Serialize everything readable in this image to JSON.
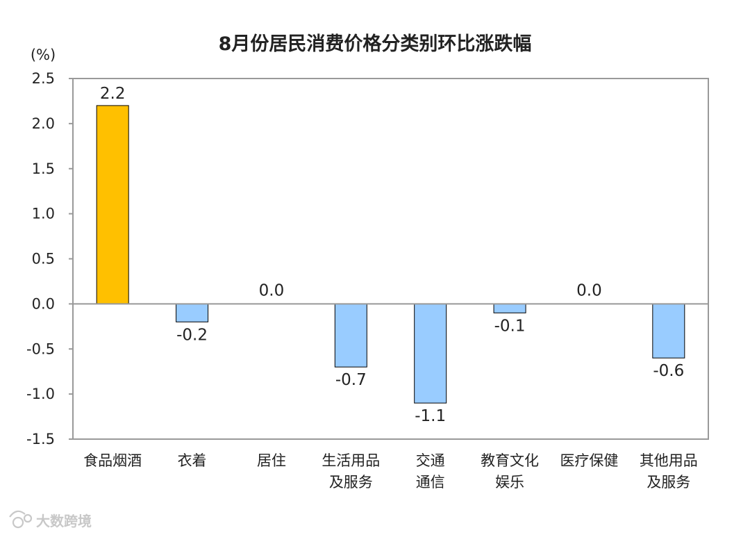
{
  "chart_data": {
    "type": "bar",
    "title": "8月份居民消费价格分类别环比涨跌幅",
    "ylabel": "(%)",
    "ylim": [
      -1.5,
      2.5
    ],
    "yticks": [
      "2.5",
      "2.0",
      "1.5",
      "1.0",
      "0.5",
      "0.0",
      "-0.5",
      "-1.0",
      "-1.5"
    ],
    "ytick_values": [
      2.5,
      2.0,
      1.5,
      1.0,
      0.5,
      0.0,
      -0.5,
      -1.0,
      -1.5
    ],
    "categories": [
      [
        "食品烟酒"
      ],
      [
        "衣着"
      ],
      [
        "居住"
      ],
      [
        "生活用品",
        "及服务"
      ],
      [
        "交通",
        "通信"
      ],
      [
        "教育文化",
        "娱乐"
      ],
      [
        "医疗保健"
      ],
      [
        "其他用品",
        "及服务"
      ]
    ],
    "values": [
      2.2,
      -0.2,
      0.0,
      -0.7,
      -1.1,
      -0.1,
      0.0,
      -0.6
    ],
    "value_labels": [
      "2.2",
      "-0.2",
      "0.0",
      "-0.7",
      "-1.1",
      "-0.1",
      "0.0",
      "-0.6"
    ],
    "grid": false,
    "colors": {
      "positive": "#FFC000",
      "negative": "#99CCFF",
      "stroke": "#000000",
      "frame": "#999999"
    }
  },
  "watermark": {
    "text": "大数跨境"
  }
}
